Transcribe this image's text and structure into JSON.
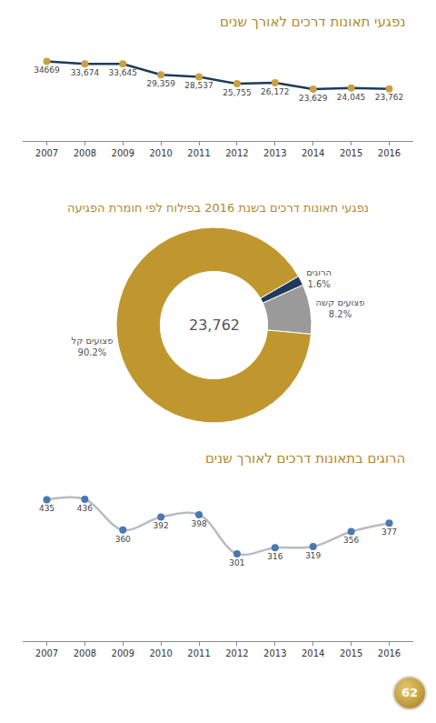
{
  "chart_data": [
    {
      "type": "line",
      "title": "נפגעי תאונות דרכים לאורך שנים",
      "categories": [
        "2007",
        "2008",
        "2009",
        "2010",
        "2011",
        "2012",
        "2013",
        "2014",
        "2015",
        "2016"
      ],
      "values": [
        34669,
        33674,
        33645,
        29359,
        28537,
        25755,
        26172,
        23629,
        24045,
        23762
      ],
      "value_labels": [
        "34669",
        "33,674",
        "33,645",
        "29,359",
        "28,537",
        "25,755",
        "26,172",
        "23,629",
        "24,045",
        "23,762"
      ],
      "color": "#1f3a5c",
      "colors": [
        "#c9a043",
        "#c9a043",
        "#c9a043",
        "#c9a043",
        "#c9a043",
        "#c9a043",
        "#c9a043",
        "#c9a043",
        "#c9a043",
        "#c9a043"
      ],
      "ylim": [
        3000,
        41000
      ],
      "tick_labels": "x",
      "grid": false,
      "data_labels": true,
      "line_style": "solid",
      "marker": "circle"
    },
    {
      "type": "donut",
      "title": "נפגעי תאונות דרכים בשנת 2016 בפילוח לפי חומרת הפגיעה",
      "categories": [
        "הרוגים",
        "פצועים קשה",
        "פצועים קל"
      ],
      "values": [
        1.6,
        8.2,
        90.2
      ],
      "value_labels": [
        "1.6%",
        "8.2%",
        "90.2%"
      ],
      "colors": [
        "#1f3a5c",
        "#9a9a9a",
        "#c0962e"
      ],
      "annotations": [
        "23,762"
      ],
      "data_labels": true
    },
    {
      "type": "line",
      "title": "הרוגים בתאונות דרכים לאורך שנים",
      "categories": [
        "2007",
        "2008",
        "2009",
        "2010",
        "2011",
        "2012",
        "2013",
        "2014",
        "2015",
        "2016"
      ],
      "values": [
        435,
        436,
        360,
        392,
        398,
        301,
        316,
        319,
        356,
        377
      ],
      "color": "#b7bcc4",
      "colors": [
        "#4a78b0",
        "#4a78b0",
        "#4a78b0",
        "#4a78b0",
        "#4a78b0",
        "#4a78b0",
        "#4a78b0",
        "#4a78b0",
        "#4a78b0",
        "#4a78b0"
      ],
      "ylim": [
        85,
        445
      ],
      "tick_labels": "x",
      "grid": false,
      "data_labels": true,
      "line_style": "spline",
      "marker": "circle"
    }
  ],
  "page_number": "62"
}
